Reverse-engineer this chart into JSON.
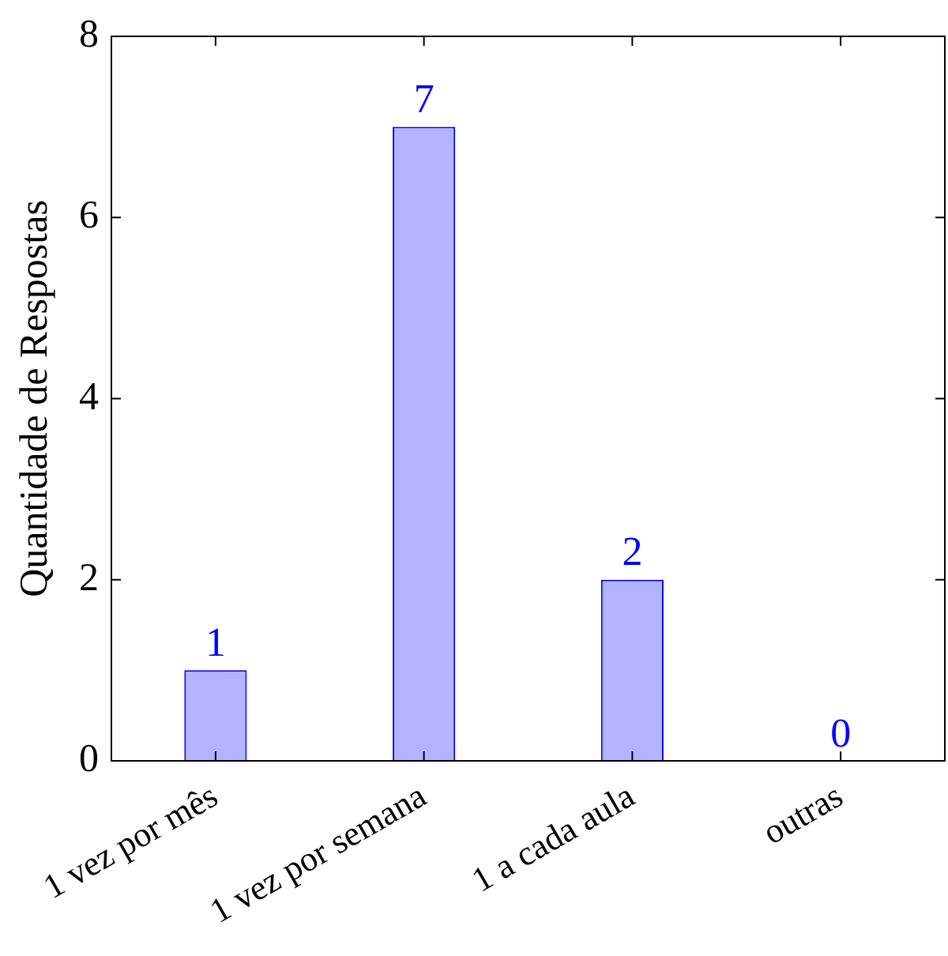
{
  "chart_data": {
    "type": "bar",
    "ylabel": "Quantidade de Respostas",
    "categories": [
      "1 vez por mês",
      "1 vez por semana",
      "1 a cada aula",
      "outras"
    ],
    "values": [
      1,
      7,
      2,
      0
    ],
    "color": "#b3b3ff",
    "ylim": [
      0,
      8
    ],
    "yticks": [
      0,
      2,
      4,
      6,
      8
    ],
    "data_labels": true,
    "grid": false,
    "legend": false
  }
}
